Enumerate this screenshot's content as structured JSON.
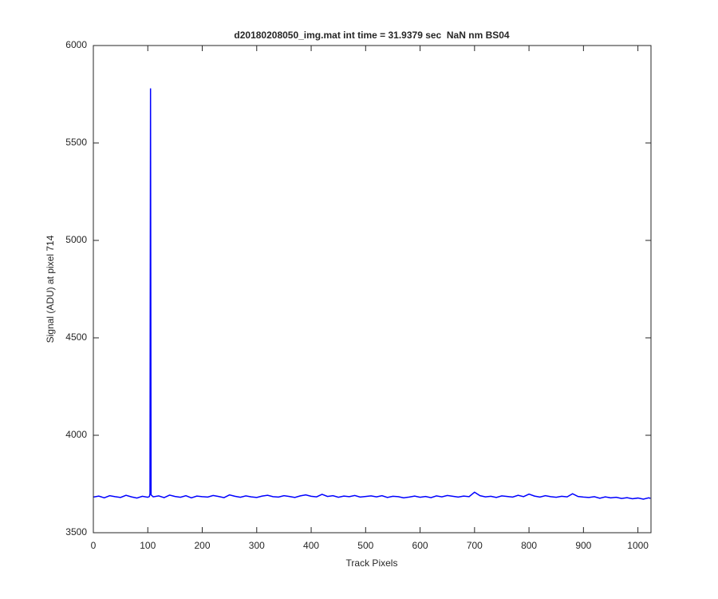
{
  "chart_data": {
    "type": "line",
    "title": "d20180208050_img.mat int time = 31.9379 sec  NaN nm BS04",
    "x_label": "Track Pixels",
    "y_label": "Signal (ADU) at pixel 714",
    "color": "#0000ff",
    "x": [
      0,
      10,
      20,
      30,
      40,
      50,
      60,
      70,
      80,
      90,
      100,
      103,
      104,
      105,
      106,
      110,
      120,
      130,
      140,
      150,
      160,
      170,
      180,
      190,
      200,
      210,
      220,
      230,
      240,
      250,
      260,
      270,
      280,
      290,
      300,
      310,
      320,
      330,
      340,
      350,
      360,
      370,
      380,
      390,
      400,
      410,
      420,
      430,
      440,
      450,
      460,
      470,
      480,
      490,
      500,
      510,
      520,
      530,
      540,
      550,
      560,
      570,
      580,
      590,
      600,
      610,
      620,
      630,
      640,
      650,
      660,
      670,
      680,
      690,
      700,
      710,
      720,
      730,
      740,
      750,
      760,
      770,
      780,
      790,
      800,
      810,
      820,
      830,
      840,
      850,
      860,
      870,
      880,
      890,
      900,
      910,
      920,
      930,
      940,
      950,
      960,
      970,
      980,
      990,
      1000,
      1010,
      1020,
      1023
    ],
    "values": [
      3683,
      3688,
      3679,
      3690,
      3685,
      3681,
      3692,
      3684,
      3678,
      3687,
      3682,
      3686,
      3700,
      5780,
      3694,
      3684,
      3689,
      3680,
      3693,
      3686,
      3682,
      3690,
      3679,
      3688,
      3685,
      3683,
      3691,
      3686,
      3680,
      3694,
      3687,
      3682,
      3689,
      3684,
      3681,
      3688,
      3692,
      3685,
      3683,
      3690,
      3686,
      3681,
      3689,
      3694,
      3687,
      3684,
      3697,
      3686,
      3690,
      3682,
      3688,
      3685,
      3691,
      3683,
      3686,
      3689,
      3684,
      3690,
      3681,
      3687,
      3685,
      3679,
      3683,
      3688,
      3682,
      3686,
      3680,
      3689,
      3684,
      3691,
      3687,
      3683,
      3688,
      3685,
      3708,
      3690,
      3684,
      3687,
      3681,
      3689,
      3686,
      3683,
      3692,
      3685,
      3698,
      3688,
      3683,
      3690,
      3685,
      3682,
      3687,
      3684,
      3700,
      3686,
      3683,
      3681,
      3685,
      3677,
      3684,
      3679,
      3682,
      3676,
      3680,
      3674,
      3678,
      3672,
      3679,
      3676
    ],
    "xlim": [
      0,
      1024
    ],
    "ylim": [
      3500,
      6000
    ],
    "xticks": [
      0,
      100,
      200,
      300,
      400,
      500,
      600,
      700,
      800,
      900,
      1000
    ],
    "yticks": [
      3500,
      4000,
      4500,
      5000,
      5500,
      6000
    ]
  }
}
